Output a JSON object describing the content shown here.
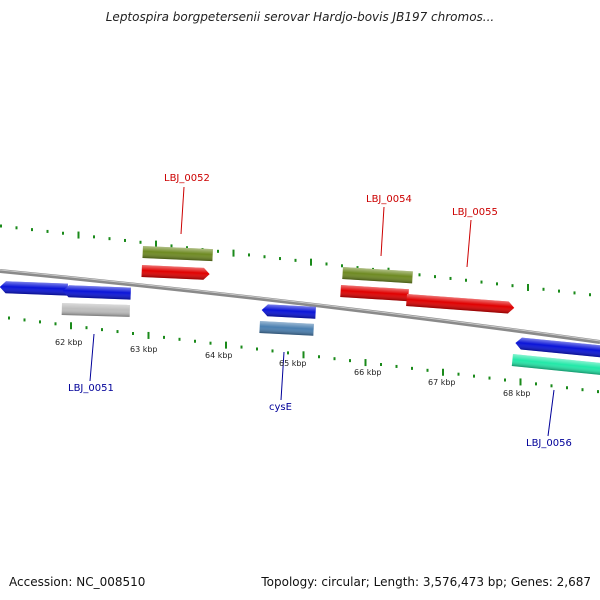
{
  "title": "Leptospira borgpetersenii serovar Hardjo-bovis JB197 chromos...",
  "footer": {
    "accession": "Accession: NC_008510",
    "summary": "Topology: circular; Length: 3,576,473 bp; Genes: 2,687"
  },
  "colors": {
    "backbone": "#8a8a8a",
    "tick": "#1a8a1a",
    "label_forward": "#cc0000",
    "label_reverse": "#000099",
    "kbp_text": "#222222"
  },
  "kbp_labels": [
    "62 kbp",
    "63 kbp",
    "64 kbp",
    "65 kbp",
    "66 kbp",
    "67 kbp",
    "68 kbp"
  ],
  "genes": [
    {
      "id": "b1",
      "label": "",
      "color": "#0a14d8",
      "strand": "reverse",
      "style": "arrow"
    },
    {
      "id": "b2",
      "label": "",
      "color": "#0a14d8",
      "strand": "reverse",
      "style": "arrow"
    },
    {
      "id": "g1",
      "label": "",
      "color": "#bdbdbd",
      "strand": "reverse",
      "style": "box"
    },
    {
      "id": "ol1",
      "label": "",
      "color": "#6e8a22",
      "strand": "forward",
      "style": "box"
    },
    {
      "id": "r1",
      "label": "",
      "color": "#e00000",
      "strand": "forward",
      "style": "arrow"
    },
    {
      "id": "b3",
      "label": "",
      "color": "#0a14d8",
      "strand": "reverse",
      "style": "arrow"
    },
    {
      "id": "sb1",
      "label": "",
      "color": "#4a7fb0",
      "strand": "reverse",
      "style": "box"
    },
    {
      "id": "ol2",
      "label": "",
      "color": "#6e8a22",
      "strand": "forward",
      "style": "box"
    },
    {
      "id": "r2",
      "label": "",
      "color": "#e00000",
      "strand": "forward",
      "style": "box"
    },
    {
      "id": "r3",
      "label": "",
      "color": "#e00000",
      "strand": "forward",
      "style": "arrow"
    },
    {
      "id": "b4",
      "label": "",
      "color": "#0a14d8",
      "strand": "reverse",
      "style": "arrow"
    },
    {
      "id": "c1",
      "label": "",
      "color": "#22e8a8",
      "strand": "reverse",
      "style": "box"
    }
  ],
  "feature_labels": [
    {
      "text": "LBJ_0052",
      "strand": "forward"
    },
    {
      "text": "LBJ_0054",
      "strand": "forward"
    },
    {
      "text": "LBJ_0055",
      "strand": "forward"
    },
    {
      "text": "LBJ_0051",
      "strand": "reverse"
    },
    {
      "text": "cysE",
      "strand": "reverse"
    },
    {
      "text": "LBJ_0056",
      "strand": "reverse"
    }
  ]
}
